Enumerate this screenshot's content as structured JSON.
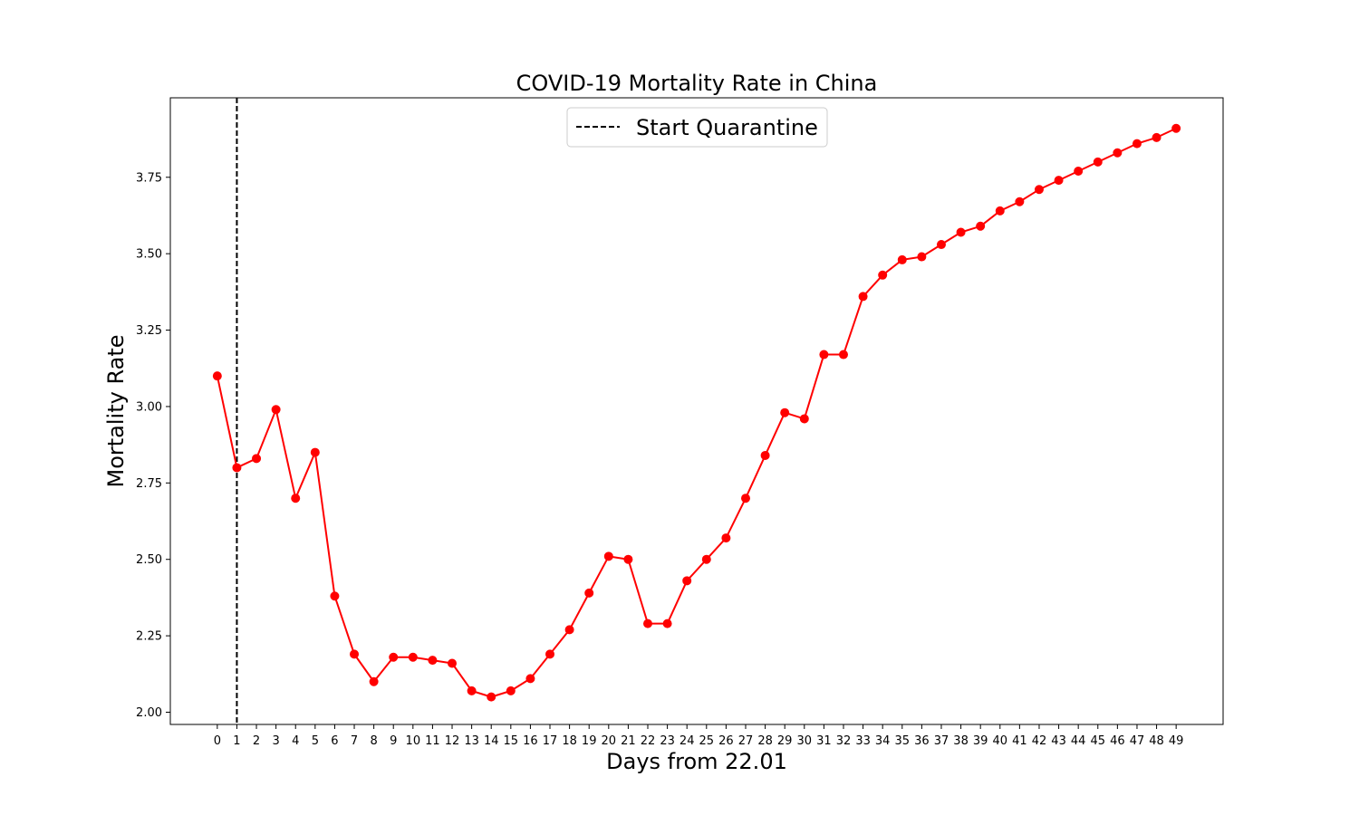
{
  "chart_data": {
    "type": "line",
    "title": "COVID-19 Mortality Rate in China",
    "xlabel": "Days from 22.01",
    "ylabel": "Mortality Rate",
    "x": [
      0,
      1,
      2,
      3,
      4,
      5,
      6,
      7,
      8,
      9,
      10,
      11,
      12,
      13,
      14,
      15,
      16,
      17,
      18,
      19,
      20,
      21,
      22,
      23,
      24,
      25,
      26,
      27,
      28,
      29,
      30,
      31,
      32,
      33,
      34,
      35,
      36,
      37,
      38,
      39,
      40,
      41,
      42,
      43,
      44,
      45,
      46,
      47,
      48,
      49
    ],
    "xticks": [
      "0",
      "1",
      "2",
      "3",
      "4",
      "5",
      "6",
      "7",
      "8",
      "9",
      "10",
      "11",
      "12",
      "13",
      "14",
      "15",
      "16",
      "17",
      "18",
      "19",
      "20",
      "21",
      "22",
      "23",
      "24",
      "25",
      "26",
      "27",
      "28",
      "29",
      "30",
      "31",
      "32",
      "33",
      "34",
      "35",
      "36",
      "37",
      "38",
      "39",
      "40",
      "41",
      "42",
      "43",
      "44",
      "45",
      "46",
      "47",
      "48",
      "49"
    ],
    "yticks": [
      "2.00",
      "2.25",
      "2.50",
      "2.75",
      "3.00",
      "3.25",
      "3.50",
      "3.75"
    ],
    "ylim": [
      1.96,
      4.01
    ],
    "xlim": [
      -2.4,
      51.4
    ],
    "series": [
      {
        "color": "#ff0000",
        "marker": "circle",
        "values": [
          3.1,
          2.8,
          2.83,
          2.99,
          2.7,
          2.85,
          2.38,
          2.19,
          2.1,
          2.18,
          2.18,
          2.17,
          2.16,
          2.07,
          2.05,
          2.07,
          2.11,
          2.19,
          2.27,
          2.39,
          2.51,
          2.5,
          2.29,
          2.29,
          2.43,
          2.5,
          2.57,
          2.7,
          2.84,
          2.98,
          2.96,
          3.17,
          3.17,
          3.36,
          3.43,
          3.48,
          3.49,
          3.53,
          3.57,
          3.59,
          3.64,
          3.67,
          3.71,
          3.74,
          3.77,
          3.8,
          3.83,
          3.86,
          3.88,
          3.91
        ]
      }
    ],
    "vline": {
      "x": 1,
      "name": "Start Quarantine",
      "color": "#000000",
      "style": "dashed"
    },
    "legend": {
      "position": "top-center",
      "entries": [
        "Start Quarantine"
      ]
    },
    "grid": false
  }
}
